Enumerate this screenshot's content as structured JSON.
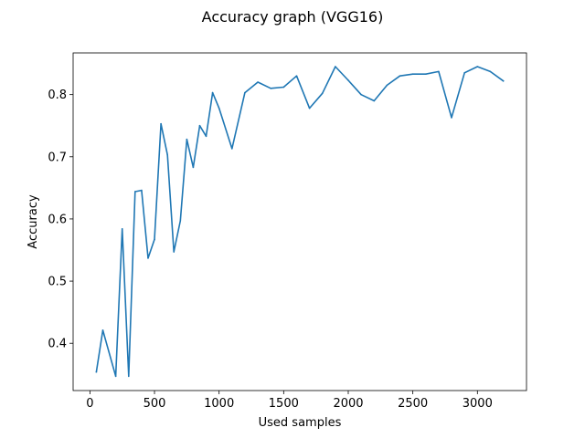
{
  "chart_data": {
    "type": "line",
    "title": "Accuracy graph (VGG16)",
    "xlabel": "Used samples",
    "ylabel": "Accuracy",
    "xlim": [
      -130,
      3380
    ],
    "ylim": [
      0.324,
      0.867
    ],
    "xticks": [
      0,
      500,
      1000,
      1500,
      2000,
      2500,
      3000
    ],
    "xtick_labels": [
      "0",
      "500",
      "1000",
      "1500",
      "2000",
      "2500",
      "3000"
    ],
    "yticks": [
      0.4,
      0.5,
      0.6,
      0.7,
      0.8
    ],
    "ytick_labels": [
      "0.4",
      "0.5",
      "0.6",
      "0.7",
      "0.8"
    ],
    "grid": false,
    "series": [
      {
        "color": "#1f77b4",
        "x": [
          50,
          100,
          200,
          250,
          300,
          350,
          400,
          450,
          500,
          550,
          600,
          650,
          700,
          750,
          800,
          850,
          900,
          950,
          1000,
          1100,
          1200,
          1300,
          1400,
          1500,
          1600,
          1700,
          1800,
          1900,
          2000,
          2100,
          2200,
          2300,
          2400,
          2500,
          2600,
          2700,
          2800,
          2900,
          3000,
          3100,
          3200
        ],
        "y": [
          0.354,
          0.421,
          0.347,
          0.584,
          0.347,
          0.644,
          0.646,
          0.537,
          0.567,
          0.753,
          0.703,
          0.547,
          0.597,
          0.728,
          0.683,
          0.75,
          0.733,
          0.803,
          0.778,
          0.713,
          0.803,
          0.82,
          0.81,
          0.812,
          0.83,
          0.778,
          0.802,
          0.845,
          0.823,
          0.8,
          0.79,
          0.815,
          0.83,
          0.833,
          0.833,
          0.837,
          0.763,
          0.835,
          0.845,
          0.837,
          0.822
        ]
      }
    ]
  }
}
